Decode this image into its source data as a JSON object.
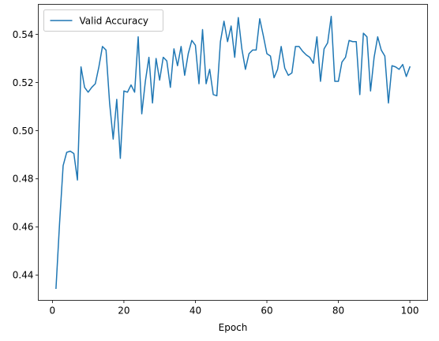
{
  "chart_data": {
    "type": "line",
    "xlabel": "Epoch",
    "ylabel": "",
    "title": "",
    "xlim": [
      -3.95,
      104.95
    ],
    "ylim": [
      0.4295,
      0.5525
    ],
    "xticks": [
      0,
      20,
      40,
      60,
      80,
      100
    ],
    "xtick_labels": [
      "0",
      "20",
      "40",
      "60",
      "80",
      "100"
    ],
    "yticks": [
      0.44,
      0.46,
      0.48,
      0.5,
      0.52,
      0.54
    ],
    "ytick_labels": [
      "0.44",
      "0.46",
      "0.48",
      "0.50",
      "0.52",
      "0.54"
    ],
    "grid": false,
    "legend_position": "top-left",
    "series": [
      {
        "name": "Valid Accuracy",
        "color": "#1f77b4",
        "x": [
          1,
          2,
          3,
          4,
          5,
          6,
          7,
          8,
          9,
          10,
          11,
          12,
          13,
          14,
          15,
          16,
          17,
          18,
          19,
          20,
          21,
          22,
          23,
          24,
          25,
          26,
          27,
          28,
          29,
          30,
          31,
          32,
          33,
          34,
          35,
          36,
          37,
          38,
          39,
          40,
          41,
          42,
          43,
          44,
          45,
          46,
          47,
          48,
          49,
          50,
          51,
          52,
          53,
          54,
          55,
          56,
          57,
          58,
          59,
          60,
          61,
          62,
          63,
          64,
          65,
          66,
          67,
          68,
          69,
          70,
          71,
          72,
          73,
          74,
          75,
          76,
          77,
          78,
          79,
          80,
          81,
          82,
          83,
          84,
          85,
          86,
          87,
          88,
          89,
          90,
          91,
          92,
          93,
          94,
          95,
          96,
          97,
          98,
          99,
          100
        ],
        "values": [
          0.4345,
          0.4615,
          0.4855,
          0.491,
          0.4915,
          0.4905,
          0.4795,
          0.5265,
          0.518,
          0.516,
          0.518,
          0.5195,
          0.5265,
          0.535,
          0.5335,
          0.5115,
          0.4965,
          0.513,
          0.4885,
          0.5165,
          0.516,
          0.519,
          0.516,
          0.539,
          0.507,
          0.5205,
          0.5305,
          0.5115,
          0.53,
          0.521,
          0.5305,
          0.529,
          0.518,
          0.534,
          0.527,
          0.535,
          0.523,
          0.532,
          0.5375,
          0.5355,
          0.5195,
          0.542,
          0.5195,
          0.5255,
          0.515,
          0.5145,
          0.537,
          0.5455,
          0.537,
          0.5435,
          0.5305,
          0.547,
          0.534,
          0.5255,
          0.532,
          0.5335,
          0.5335,
          0.5465,
          0.5395,
          0.532,
          0.531,
          0.522,
          0.5255,
          0.535,
          0.526,
          0.523,
          0.524,
          0.535,
          0.535,
          0.533,
          0.5315,
          0.5305,
          0.528,
          0.539,
          0.5205,
          0.534,
          0.5365,
          0.5475,
          0.5205,
          0.5205,
          0.5285,
          0.5305,
          0.5375,
          0.537,
          0.537,
          0.515,
          0.5405,
          0.539,
          0.5165,
          0.5305,
          0.539,
          0.5335,
          0.531,
          0.5115,
          0.527,
          0.5265,
          0.5255,
          0.5275,
          0.5225,
          0.5265
        ]
      }
    ]
  }
}
